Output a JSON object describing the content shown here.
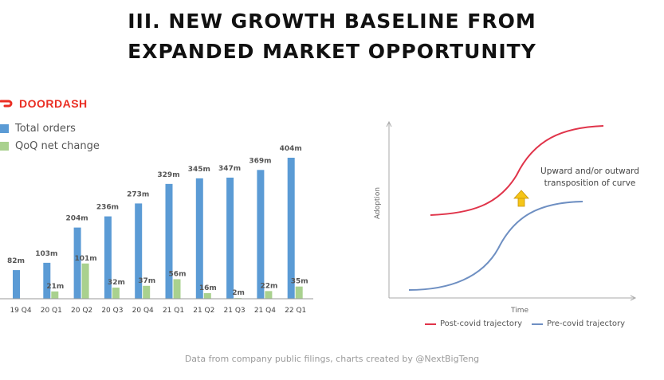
{
  "title_line1": "III. NEW GROWTH BASELINE FROM",
  "title_line2": "EXPANDED MARKET OPPORTUNITY",
  "brand": "DOORDASH",
  "colors": {
    "total": "#5b9bd5",
    "qoq": "#a9d18e",
    "brand": "#ea2d22",
    "post": "#e0344a",
    "pre": "#6e8fc2"
  },
  "chart_data": [
    {
      "type": "bar",
      "categories": [
        "19 Q4",
        "20 Q1",
        "20 Q2",
        "20 Q3",
        "20 Q4",
        "21 Q1",
        "21 Q2",
        "21 Q3",
        "21 Q4",
        "22 Q1"
      ],
      "series": [
        {
          "name": "Total orders",
          "values": [
            82,
            103,
            204,
            236,
            273,
            329,
            345,
            347,
            369,
            404
          ],
          "labels": [
            "82m",
            "103m",
            "204m",
            "236m",
            "273m",
            "329m",
            "345m",
            "347m",
            "369m",
            "404m"
          ]
        },
        {
          "name": "QoQ net change",
          "values": [
            null,
            21,
            101,
            32,
            37,
            56,
            16,
            2,
            22,
            35
          ],
          "labels": [
            "",
            "21m",
            "101m",
            "32m",
            "37m",
            "56m",
            "16m",
            "2m",
            "22m",
            "35m"
          ]
        }
      ],
      "ylim": [
        0,
        404
      ]
    },
    {
      "type": "line",
      "xlabel": "Time",
      "ylabel": "Adoption",
      "annotation": [
        "Upward and/or outward",
        "transposition of curve"
      ],
      "series": [
        {
          "name": "Post-covid trajectory"
        },
        {
          "name": "Pre-covid trajectory"
        }
      ]
    }
  ],
  "footer": "Data from company public filings, charts created by @NextBigTeng"
}
